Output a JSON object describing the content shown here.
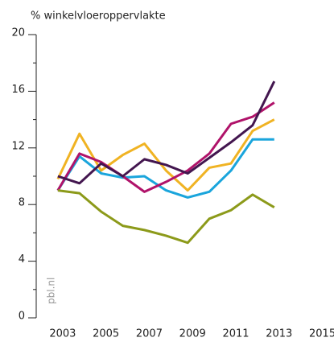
{
  "chart_data": {
    "type": "line",
    "title": "% winkelvloeroppervlakte",
    "source": "pbl.nl",
    "x": [
      2003,
      2004,
      2005,
      2006,
      2007,
      2008,
      2009,
      2010,
      2011,
      2012,
      2013
    ],
    "series": [
      {
        "color": "#f0b323",
        "values": [
          9.8,
          13.0,
          10.4,
          11.5,
          12.3,
          10.4,
          9.0,
          10.6,
          10.9,
          13.2,
          14.0
        ]
      },
      {
        "color": "#1aa5dc",
        "values": [
          9.0,
          11.4,
          10.2,
          9.9,
          10.0,
          9.0,
          8.5,
          8.9,
          10.4,
          12.6,
          12.6
        ]
      },
      {
        "color": "#b0136a",
        "values": [
          9.0,
          11.6,
          11.0,
          10.0,
          8.9,
          9.6,
          10.4,
          11.6,
          13.7,
          14.2,
          15.2
        ]
      },
      {
        "color": "#43164f",
        "values": [
          10.0,
          9.5,
          10.9,
          10.0,
          11.2,
          10.8,
          10.2,
          11.3,
          12.4,
          13.6,
          16.7
        ]
      },
      {
        "color": "#8c9a1a",
        "values": [
          9.0,
          8.8,
          7.5,
          6.5,
          6.2,
          5.8,
          5.3,
          7.0,
          7.6,
          8.7,
          7.8
        ]
      }
    ],
    "xlim": [
      2002,
      2015.5
    ],
    "xticks": [
      2003,
      2005,
      2007,
      2009,
      2011,
      2013,
      2015
    ],
    "ylim": [
      0,
      20
    ],
    "yticks": [
      0,
      4,
      8,
      12,
      16,
      20
    ],
    "yminor": [
      2,
      6,
      10,
      14,
      18
    ],
    "grid": false
  }
}
